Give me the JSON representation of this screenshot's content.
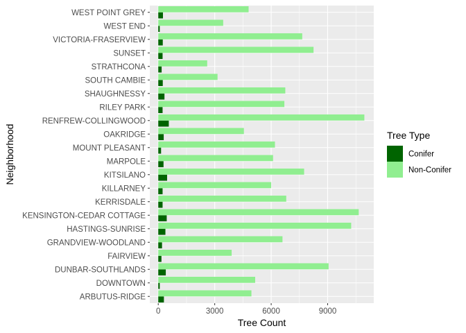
{
  "chart_data": {
    "type": "bar",
    "orientation": "horizontal",
    "bar_position": "dodge",
    "categories": [
      "ARBUTUS-RIDGE",
      "DOWNTOWN",
      "DUNBAR-SOUTHLANDS",
      "FAIRVIEW",
      "GRANDVIEW-WOODLAND",
      "HASTINGS-SUNRISE",
      "KENSINGTON-CEDAR COTTAGE",
      "KERRISDALE",
      "KILLARNEY",
      "KITSILANO",
      "MARPOLE",
      "MOUNT PLEASANT",
      "OAKRIDGE",
      "RENFREW-COLLINGWOOD",
      "RILEY PARK",
      "SHAUGHNESSY",
      "SOUTH CAMBIE",
      "STRATHCONA",
      "SUNSET",
      "VICTORIA-FRASERVIEW",
      "WEST END",
      "WEST POINT GREY"
    ],
    "series": [
      {
        "name": "Conifer",
        "color": "#006400",
        "values": [
          300,
          80,
          400,
          170,
          200,
          380,
          450,
          230,
          230,
          470,
          280,
          150,
          290,
          560,
          230,
          330,
          240,
          180,
          230,
          240,
          80,
          250
        ]
      },
      {
        "name": "Non-Conifer",
        "color": "#90ee90",
        "values": [
          4950,
          5150,
          9050,
          3900,
          6600,
          10250,
          10650,
          6800,
          6000,
          7750,
          6100,
          6200,
          4550,
          10950,
          6700,
          6750,
          3150,
          2600,
          8250,
          7650,
          3450,
          4800
        ]
      }
    ],
    "xlabel": "Tree Count",
    "ylabel": "Neighborhood",
    "xlim": [
      -450,
      11450
    ],
    "xticks": [
      0,
      3000,
      6000,
      9000
    ],
    "xtick_labels": [
      "0",
      "3000",
      "6000",
      "9000"
    ],
    "grid": true,
    "legend": {
      "title": "Tree Type",
      "placement": "right"
    },
    "panel_color": "#ebebeb",
    "grid_color": "#ffffff"
  }
}
